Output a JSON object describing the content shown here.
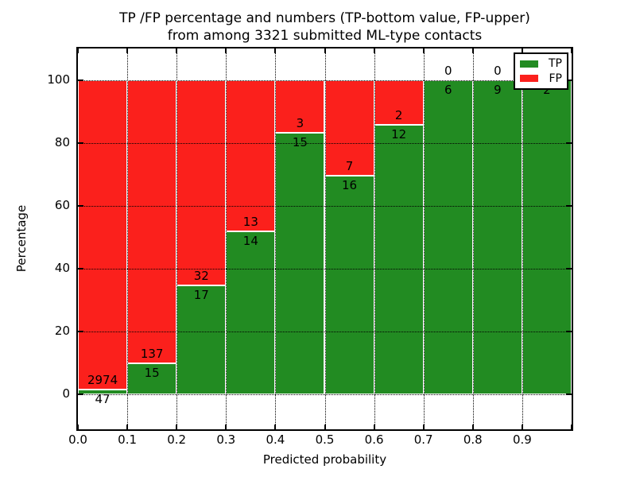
{
  "title": {
    "line1": "TP /FP percentage and numbers (TP-bottom value, FP-upper)",
    "line2": "from among 3321 submitted ML-type contacts"
  },
  "axes": {
    "xlabel": "Predicted probability",
    "ylabel": "Percentage",
    "x_tick_labels": [
      "0.0",
      "0.1",
      "0.2",
      "0.3",
      "0.4",
      "0.5",
      "0.6",
      "0.7",
      "0.8",
      "0.9"
    ],
    "y_tick_labels": [
      "0",
      "20",
      "40",
      "60",
      "80",
      "100"
    ],
    "y_tick_values": [
      0,
      20,
      40,
      60,
      80,
      100
    ]
  },
  "legend": {
    "items": [
      {
        "label": "TP",
        "color": "#228b22"
      },
      {
        "label": "FP",
        "color": "#fb201c"
      }
    ]
  },
  "chart_data": {
    "type": "bar",
    "stacking": "percent",
    "title": "TP /FP percentage and numbers (TP-bottom value, FP-upper) from among 3321 submitted ML-type contacts",
    "xlabel": "Predicted probability",
    "ylabel": "Percentage",
    "total_contacts": 3321,
    "categories": [
      "0.0-0.1",
      "0.1-0.2",
      "0.2-0.3",
      "0.3-0.4",
      "0.4-0.5",
      "0.5-0.6",
      "0.6-0.7",
      "0.7-0.8",
      "0.8-0.9",
      "0.9-1.0"
    ],
    "series": [
      {
        "name": "TP",
        "color": "#228b22",
        "values": [
          47,
          15,
          17,
          14,
          15,
          16,
          12,
          6,
          9,
          2
        ]
      },
      {
        "name": "FP",
        "color": "#fb201c",
        "values": [
          2974,
          137,
          32,
          13,
          3,
          7,
          2,
          0,
          0,
          0
        ]
      }
    ],
    "tp_percent_approx": [
      1.6,
      9.9,
      34.7,
      51.9,
      83.3,
      69.6,
      85.7,
      100.0,
      100.0,
      100.0
    ],
    "xlim": [
      0.0,
      1.0
    ],
    "ylim": [
      -11,
      110
    ],
    "grid": true,
    "grid_style": "dotted",
    "legend_position": "upper right"
  }
}
